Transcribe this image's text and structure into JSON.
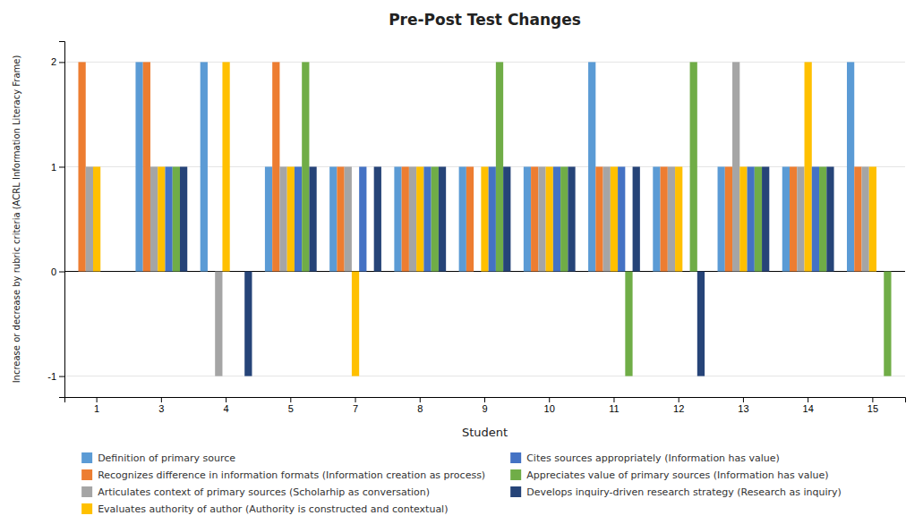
{
  "chart_data": {
    "type": "bar",
    "title": "Pre-Post Test Changes",
    "x_label": "Student",
    "y_label": "Increase or decrease by rubric criteria (ACRL Information Literacy Frame)",
    "categories": [
      "1",
      "3",
      "4",
      "5",
      "7",
      "8",
      "9",
      "10",
      "11",
      "12",
      "13",
      "14",
      "15"
    ],
    "series": [
      {
        "name": "Definition of primary source",
        "color": "#5B9BD5",
        "values": [
          0,
          2,
          2,
          1,
          1,
          1,
          1,
          1,
          2,
          1,
          1,
          1,
          2
        ]
      },
      {
        "name": "Recognizes difference in information formats (Information creation as process)",
        "color": "#ED7D31",
        "values": [
          2,
          2,
          0,
          2,
          1,
          1,
          1,
          1,
          1,
          1,
          1,
          1,
          1
        ]
      },
      {
        "name": "Articulates context of primary sources (Scholarhip as conversation)",
        "color": "#A5A5A5",
        "values": [
          1,
          1,
          -1,
          1,
          1,
          1,
          0,
          1,
          1,
          1,
          2,
          1,
          1
        ]
      },
      {
        "name": "Evaluates authority of author (Authority is constructed and contextual)",
        "color": "#FFC000",
        "values": [
          1,
          1,
          2,
          1,
          -1,
          1,
          1,
          1,
          1,
          1,
          1,
          2,
          1
        ]
      },
      {
        "name": "Cites sources appropriately (Information has value)",
        "color": "#4472C4",
        "values": [
          0,
          1,
          0,
          1,
          1,
          1,
          1,
          1,
          1,
          0,
          1,
          1,
          0
        ]
      },
      {
        "name": "Appreciates value of primary sources (Information has value)",
        "color": "#70AD47",
        "values": [
          0,
          1,
          0,
          2,
          0,
          1,
          2,
          1,
          -1,
          2,
          1,
          1,
          -1
        ]
      },
      {
        "name": "Develops inquiry-driven research strategy (Research as inquiry)",
        "color": "#264478",
        "values": [
          0,
          1,
          -1,
          1,
          1,
          1,
          1,
          1,
          1,
          -1,
          1,
          1,
          0
        ]
      }
    ],
    "ylim": [
      -1.2,
      2.2
    ],
    "yticks": [
      -1,
      0,
      1,
      2
    ],
    "grid": true,
    "legend": "bottom"
  }
}
